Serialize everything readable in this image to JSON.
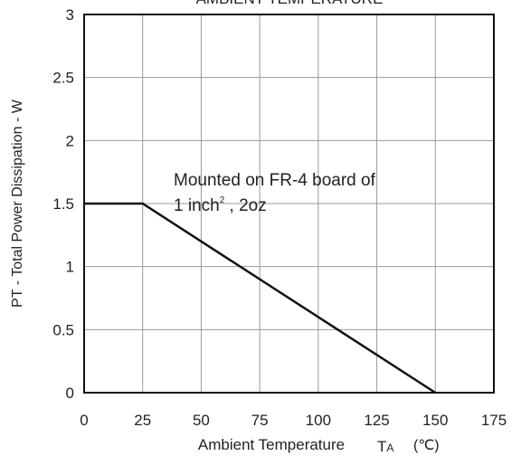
{
  "chart_data": {
    "type": "line",
    "title": "AMBIENT TEMPERATURE",
    "xlabel": "Ambient Temperature",
    "xlabel_symbol": "T",
    "xlabel_symbol_sub": "A",
    "xlabel_unit": "(℃)",
    "ylabel": "PT - Total Power Dissipation - W",
    "xlim": [
      0,
      175
    ],
    "ylim": [
      0,
      3
    ],
    "xticks": [
      0,
      25,
      50,
      75,
      100,
      125,
      150,
      175
    ],
    "yticks": [
      0,
      0.5,
      1,
      1.5,
      2,
      2.5,
      3
    ],
    "xtick_labels": [
      "0",
      "25",
      "50",
      "75",
      "100",
      "125",
      "150",
      "175"
    ],
    "ytick_labels": [
      "0",
      "0.5",
      "1",
      "1.5",
      "2",
      "2.5",
      "3"
    ],
    "grid": true,
    "series": [
      {
        "x": [
          0,
          25,
          150
        ],
        "y": [
          1.5,
          1.5,
          0
        ]
      }
    ],
    "annotation": {
      "line1": "Mounted on FR-4 board of",
      "line2_prefix": "1 inch",
      "line2_sup": "2",
      "line2_suffix": " , 2oz"
    },
    "colors": {
      "line": "#111111",
      "grid": "#9a9a9a",
      "frame": "#111111"
    }
  }
}
